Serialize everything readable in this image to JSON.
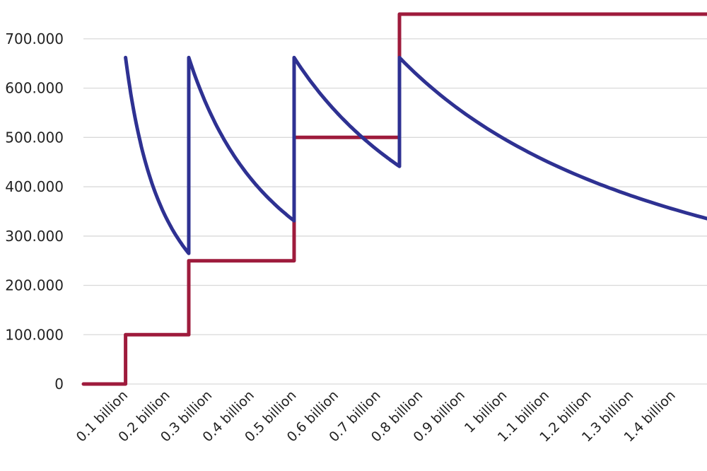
{
  "chart_data": {
    "type": "line",
    "title": "",
    "xlabel": "",
    "ylabel": "",
    "grid": true,
    "legend": "none",
    "x_tick_labels": [
      "0.1 billion",
      "0.2 billion",
      "0.3 billion",
      "0.4 billion",
      "0.5 billion",
      "0.6 billion",
      "0.7 billion",
      "0.8 billion",
      "0.9 billion",
      "1 billion",
      "1.1 billion",
      "1.2 billion",
      "1.3 billion",
      "1.4 billion"
    ],
    "x_tick_values": [
      0.1,
      0.2,
      0.3,
      0.4,
      0.5,
      0.6,
      0.7,
      0.8,
      0.9,
      1.0,
      1.1,
      1.2,
      1.3,
      1.4
    ],
    "y_tick_labels": [
      "0",
      "100.000",
      "200.000",
      "300.000",
      "400.000",
      "500.000",
      "600.000",
      "700.000"
    ],
    "y_tick_values": [
      0,
      100000,
      200000,
      300000,
      400000,
      500000,
      600000,
      700000
    ],
    "xlim": [
      0.0,
      1.48
    ],
    "ylim": [
      0,
      750000
    ],
    "series": [
      {
        "kind": "step",
        "color": "#9e1b3c",
        "points": [
          [
            0.0,
            0
          ],
          [
            0.1,
            0
          ],
          [
            0.1,
            100000
          ],
          [
            0.25,
            100000
          ],
          [
            0.25,
            250000
          ],
          [
            0.5,
            250000
          ],
          [
            0.5,
            500000
          ],
          [
            0.75,
            500000
          ],
          [
            0.75,
            750000
          ],
          [
            1.48,
            750000
          ]
        ]
      },
      {
        "kind": "sawtooth",
        "color": "#2e3192",
        "segments": [
          {
            "x_start": 0.1,
            "x_end": 0.25,
            "amount": 100000
          },
          {
            "x_start": 0.25,
            "x_end": 0.5,
            "amount": 250000
          },
          {
            "x_start": 0.5,
            "x_end": 0.75,
            "amount": 500000
          },
          {
            "x_start": 0.75,
            "x_end": 1.48,
            "amount": 750000
          }
        ],
        "peak_y": 662000
      }
    ]
  }
}
